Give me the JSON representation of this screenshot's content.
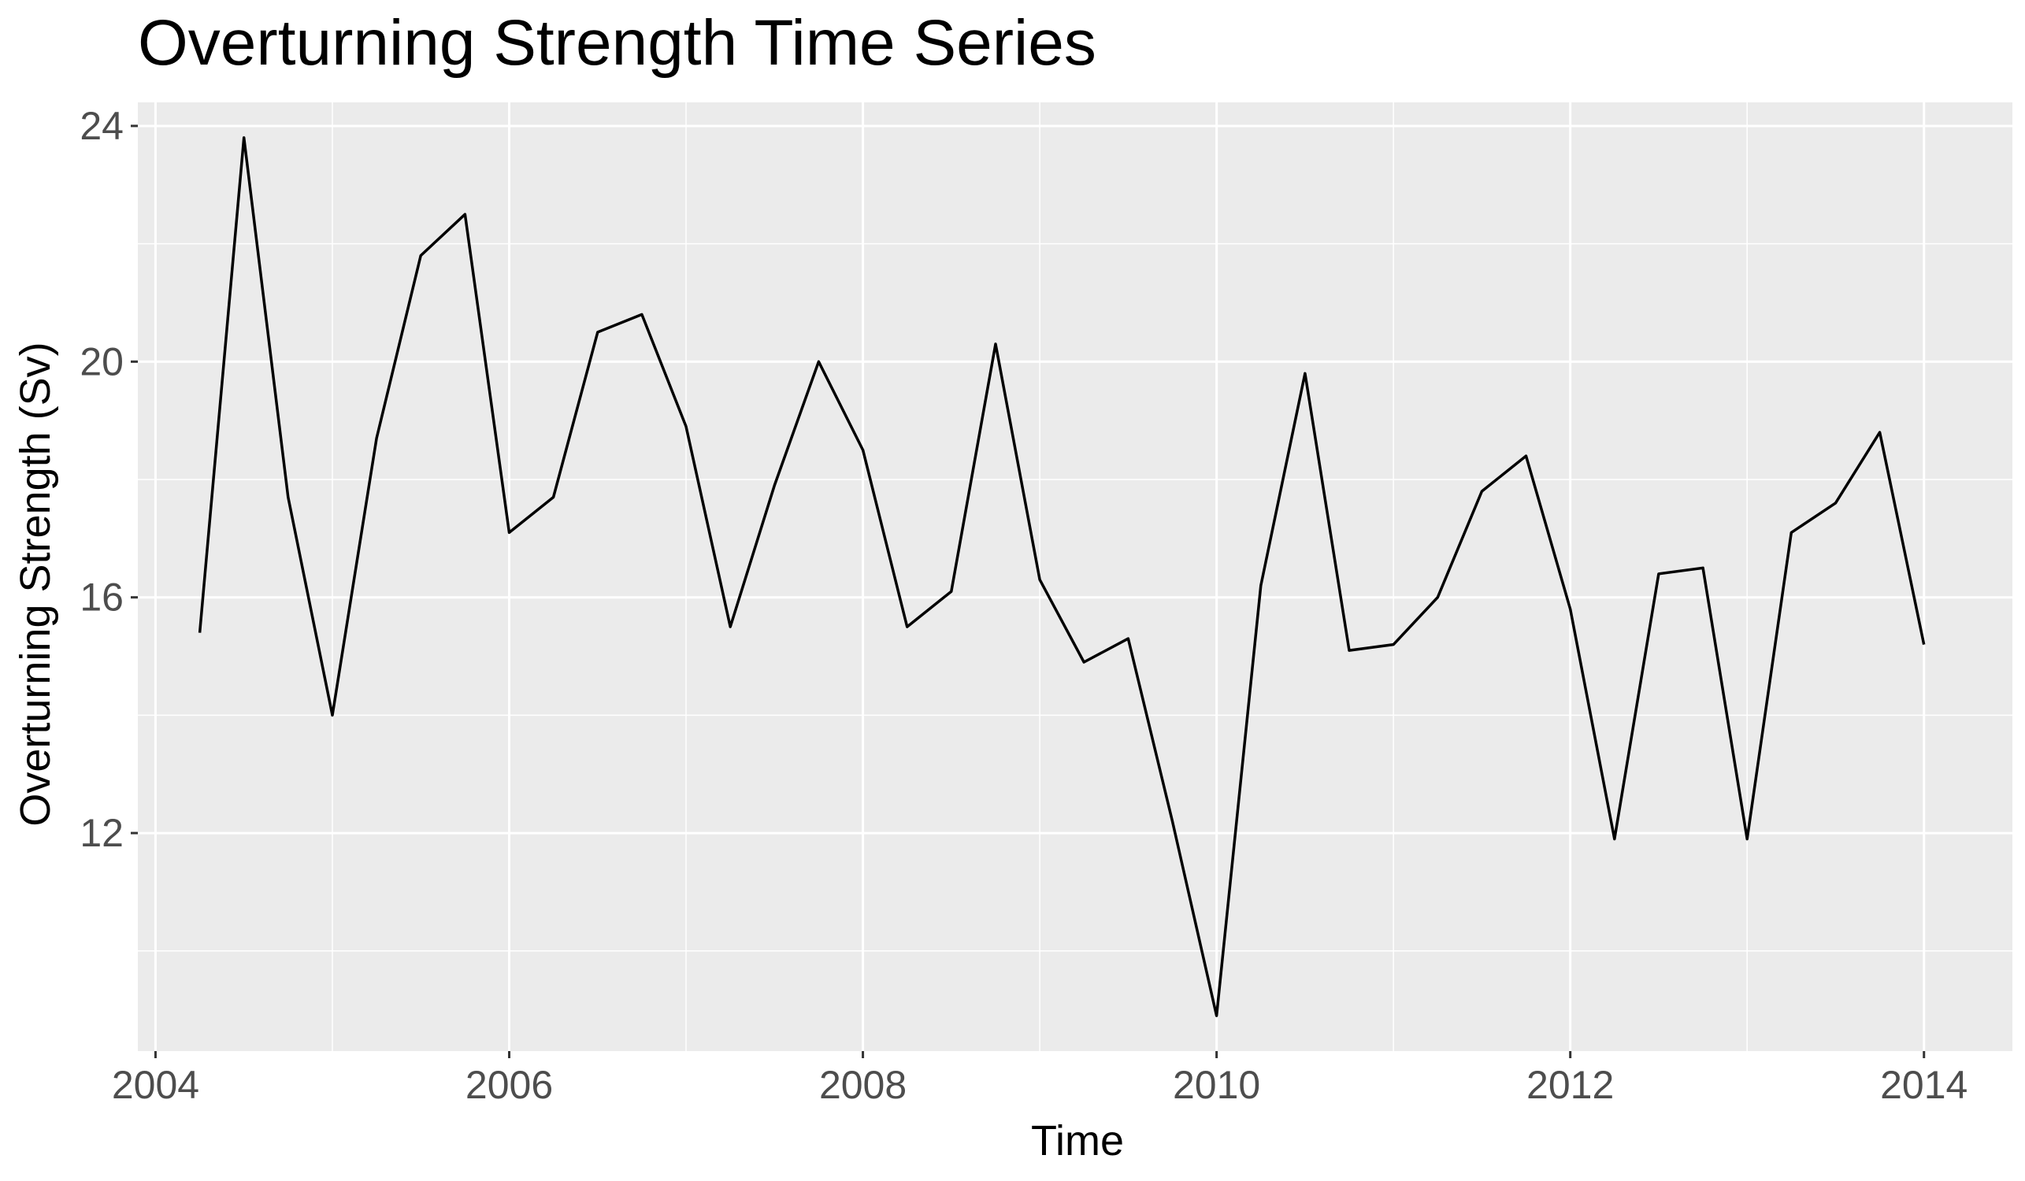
{
  "chart_data": {
    "type": "line",
    "title": "Overturning Strength Time Series",
    "xlabel": "Time",
    "ylabel": "Overturning Strength (Sv)",
    "xlim": [
      2003.9,
      2014.5
    ],
    "ylim": [
      8.3,
      24.4
    ],
    "x_ticks": [
      2004,
      2006,
      2008,
      2010,
      2012,
      2014
    ],
    "x_tick_labels": [
      "2004",
      "2006",
      "2008",
      "2010",
      "2012",
      "2014"
    ],
    "y_ticks": [
      12,
      16,
      20,
      24
    ],
    "y_tick_labels": [
      "12",
      "16",
      "20",
      "24"
    ],
    "grid": true,
    "legend": "none",
    "colors": {
      "panel": "#ebebeb",
      "grid": "#ffffff",
      "line": "#000000",
      "tick_text": "#4d4d4d"
    },
    "series": [
      {
        "x": [
          2004.25,
          2004.5,
          2004.75,
          2005.0,
          2005.25,
          2005.5,
          2005.75,
          2006.0,
          2006.25,
          2006.5,
          2006.75,
          2007.0,
          2007.25,
          2007.5,
          2007.75,
          2008.0,
          2008.25,
          2008.5,
          2008.75,
          2009.0,
          2009.25,
          2009.5,
          2009.75,
          2010.0,
          2010.25,
          2010.5,
          2010.75,
          2011.0,
          2011.25,
          2011.5,
          2011.75,
          2012.0,
          2012.25,
          2012.5,
          2012.75,
          2013.0,
          2013.25,
          2013.5,
          2013.75,
          2014.0
        ],
        "values": [
          15.4,
          23.8,
          17.7,
          14.0,
          18.7,
          21.8,
          22.5,
          17.1,
          17.7,
          20.5,
          20.8,
          18.9,
          15.5,
          17.9,
          20.0,
          18.5,
          15.5,
          16.1,
          20.3,
          16.3,
          14.9,
          15.3,
          12.2,
          8.9,
          16.2,
          19.8,
          15.1,
          15.2,
          16.0,
          17.8,
          18.4,
          15.8,
          11.9,
          16.4,
          16.5,
          11.9,
          17.1,
          17.6,
          18.8,
          15.2
        ]
      }
    ]
  }
}
